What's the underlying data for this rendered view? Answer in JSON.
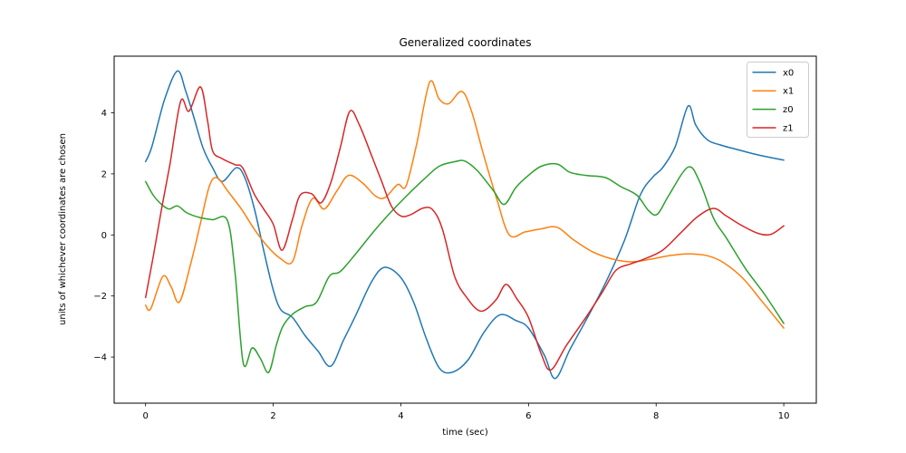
{
  "figure": {
    "title": "Generalized coordinates",
    "xlabel": "time (sec)",
    "ylabel": "units of whichever coordinates are chosen"
  },
  "chart_data": {
    "type": "line",
    "title": "Generalized coordinates",
    "xlabel": "time (sec)",
    "ylabel": "units of whichever coordinates are chosen",
    "xlim": [
      -0.5,
      10.5
    ],
    "ylim": [
      -5.5,
      5.9
    ],
    "x_ticks": [
      0,
      2,
      4,
      6,
      8,
      10
    ],
    "y_ticks": [
      4,
      2,
      0,
      -2,
      -4
    ],
    "grid": false,
    "legend_position": "upper right",
    "legend_entries": [
      "x0",
      "x1",
      "z0",
      "z1"
    ],
    "series": [
      {
        "name": "x0",
        "color": "#1f77b4",
        "points": [
          [
            0,
            2.4
          ],
          [
            0.1,
            2.9
          ],
          [
            0.3,
            4.45
          ],
          [
            0.5,
            5.37
          ],
          [
            0.63,
            4.7
          ],
          [
            0.75,
            3.9
          ],
          [
            0.9,
            2.85
          ],
          [
            1.05,
            2.2
          ],
          [
            1.2,
            1.75
          ],
          [
            1.42,
            2.2
          ],
          [
            1.55,
            1.9
          ],
          [
            1.7,
            0.9
          ],
          [
            1.85,
            -0.5
          ],
          [
            2.0,
            -1.8
          ],
          [
            2.12,
            -2.45
          ],
          [
            2.3,
            -2.7
          ],
          [
            2.5,
            -3.3
          ],
          [
            2.7,
            -3.8
          ],
          [
            2.9,
            -4.3
          ],
          [
            3.1,
            -3.45
          ],
          [
            3.3,
            -2.6
          ],
          [
            3.55,
            -1.5
          ],
          [
            3.75,
            -1.06
          ],
          [
            4.0,
            -1.4
          ],
          [
            4.2,
            -2.2
          ],
          [
            4.4,
            -3.4
          ],
          [
            4.6,
            -4.35
          ],
          [
            4.8,
            -4.5
          ],
          [
            5.05,
            -4.1
          ],
          [
            5.3,
            -3.2
          ],
          [
            5.55,
            -2.62
          ],
          [
            5.8,
            -2.8
          ],
          [
            6.0,
            -3.05
          ],
          [
            6.25,
            -3.95
          ],
          [
            6.42,
            -4.7
          ],
          [
            6.65,
            -3.75
          ],
          [
            6.9,
            -2.8
          ],
          [
            7.2,
            -1.6
          ],
          [
            7.5,
            -0.2
          ],
          [
            7.75,
            1.3
          ],
          [
            7.95,
            1.9
          ],
          [
            8.1,
            2.2
          ],
          [
            8.3,
            2.9
          ],
          [
            8.5,
            4.22
          ],
          [
            8.62,
            3.6
          ],
          [
            8.8,
            3.12
          ],
          [
            9.0,
            2.95
          ],
          [
            9.3,
            2.78
          ],
          [
            9.6,
            2.62
          ],
          [
            10,
            2.45
          ]
        ]
      },
      {
        "name": "x1",
        "color": "#ff7f0e",
        "points": [
          [
            0,
            -2.3
          ],
          [
            0.08,
            -2.42
          ],
          [
            0.27,
            -1.36
          ],
          [
            0.4,
            -1.7
          ],
          [
            0.53,
            -2.2
          ],
          [
            0.7,
            -1.0
          ],
          [
            0.85,
            0.3
          ],
          [
            1.0,
            1.6
          ],
          [
            1.12,
            1.87
          ],
          [
            1.3,
            1.4
          ],
          [
            1.5,
            0.85
          ],
          [
            1.7,
            0.2
          ],
          [
            1.9,
            -0.35
          ],
          [
            2.1,
            -0.75
          ],
          [
            2.3,
            -0.88
          ],
          [
            2.45,
            0.3
          ],
          [
            2.62,
            1.2
          ],
          [
            2.8,
            0.85
          ],
          [
            3.0,
            1.45
          ],
          [
            3.18,
            1.95
          ],
          [
            3.4,
            1.7
          ],
          [
            3.6,
            1.28
          ],
          [
            3.75,
            1.22
          ],
          [
            3.95,
            1.65
          ],
          [
            4.08,
            1.6
          ],
          [
            4.25,
            3.0
          ],
          [
            4.45,
            5.0
          ],
          [
            4.6,
            4.45
          ],
          [
            4.75,
            4.3
          ],
          [
            4.95,
            4.7
          ],
          [
            5.1,
            4.1
          ],
          [
            5.3,
            2.6
          ],
          [
            5.5,
            1.2
          ],
          [
            5.7,
            0.0
          ],
          [
            5.95,
            0.1
          ],
          [
            6.2,
            0.2
          ],
          [
            6.45,
            0.25
          ],
          [
            6.7,
            -0.15
          ],
          [
            7.0,
            -0.55
          ],
          [
            7.3,
            -0.78
          ],
          [
            7.6,
            -0.88
          ],
          [
            7.9,
            -0.8
          ],
          [
            8.2,
            -0.68
          ],
          [
            8.5,
            -0.62
          ],
          [
            8.8,
            -0.68
          ],
          [
            9.05,
            -0.9
          ],
          [
            9.35,
            -1.4
          ],
          [
            9.65,
            -2.15
          ],
          [
            10,
            -3.05
          ]
        ]
      },
      {
        "name": "z0",
        "color": "#2ca02c",
        "points": [
          [
            0,
            1.75
          ],
          [
            0.12,
            1.3
          ],
          [
            0.25,
            1.0
          ],
          [
            0.37,
            0.85
          ],
          [
            0.5,
            0.95
          ],
          [
            0.65,
            0.72
          ],
          [
            0.85,
            0.57
          ],
          [
            1.05,
            0.5
          ],
          [
            1.28,
            0.48
          ],
          [
            1.4,
            -1.2
          ],
          [
            1.53,
            -4.2
          ],
          [
            1.67,
            -3.7
          ],
          [
            1.8,
            -4.05
          ],
          [
            1.93,
            -4.5
          ],
          [
            2.05,
            -3.6
          ],
          [
            2.15,
            -3.0
          ],
          [
            2.3,
            -2.6
          ],
          [
            2.5,
            -2.35
          ],
          [
            2.68,
            -2.2
          ],
          [
            2.88,
            -1.35
          ],
          [
            3.05,
            -1.2
          ],
          [
            3.3,
            -0.6
          ],
          [
            3.55,
            0.05
          ],
          [
            3.8,
            0.65
          ],
          [
            4.1,
            1.3
          ],
          [
            4.35,
            1.8
          ],
          [
            4.6,
            2.25
          ],
          [
            4.85,
            2.4
          ],
          [
            5.0,
            2.42
          ],
          [
            5.2,
            2.1
          ],
          [
            5.45,
            1.45
          ],
          [
            5.62,
            1.0
          ],
          [
            5.8,
            1.55
          ],
          [
            6.0,
            1.95
          ],
          [
            6.2,
            2.25
          ],
          [
            6.45,
            2.32
          ],
          [
            6.65,
            2.05
          ],
          [
            6.9,
            1.95
          ],
          [
            7.2,
            1.88
          ],
          [
            7.45,
            1.58
          ],
          [
            7.7,
            1.3
          ],
          [
            7.88,
            0.8
          ],
          [
            8.02,
            0.68
          ],
          [
            8.2,
            1.3
          ],
          [
            8.5,
            2.22
          ],
          [
            8.68,
            1.75
          ],
          [
            8.9,
            0.55
          ],
          [
            9.1,
            -0.1
          ],
          [
            9.4,
            -1.1
          ],
          [
            9.7,
            -1.95
          ],
          [
            10,
            -2.9
          ]
        ]
      },
      {
        "name": "z1",
        "color": "#d62728",
        "points": [
          [
            0,
            -2.05
          ],
          [
            0.12,
            -0.7
          ],
          [
            0.25,
            0.85
          ],
          [
            0.38,
            2.3
          ],
          [
            0.55,
            4.38
          ],
          [
            0.68,
            4.05
          ],
          [
            0.86,
            4.85
          ],
          [
            0.97,
            3.75
          ],
          [
            1.05,
            2.75
          ],
          [
            1.2,
            2.5
          ],
          [
            1.4,
            2.3
          ],
          [
            1.52,
            2.2
          ],
          [
            1.7,
            1.35
          ],
          [
            1.85,
            0.85
          ],
          [
            2.0,
            0.35
          ],
          [
            2.14,
            -0.5
          ],
          [
            2.3,
            0.5
          ],
          [
            2.42,
            1.3
          ],
          [
            2.6,
            1.35
          ],
          [
            2.75,
            1.05
          ],
          [
            2.9,
            1.7
          ],
          [
            3.05,
            2.85
          ],
          [
            3.2,
            4.05
          ],
          [
            3.35,
            3.6
          ],
          [
            3.55,
            2.55
          ],
          [
            3.7,
            1.75
          ],
          [
            3.85,
            0.95
          ],
          [
            4.0,
            0.62
          ],
          [
            4.15,
            0.66
          ],
          [
            4.35,
            0.88
          ],
          [
            4.5,
            0.82
          ],
          [
            4.65,
            0.2
          ],
          [
            4.85,
            -1.4
          ],
          [
            5.05,
            -2.1
          ],
          [
            5.2,
            -2.45
          ],
          [
            5.32,
            -2.46
          ],
          [
            5.5,
            -2.1
          ],
          [
            5.65,
            -1.62
          ],
          [
            5.82,
            -2.1
          ],
          [
            6.0,
            -2.7
          ],
          [
            6.2,
            -3.9
          ],
          [
            6.35,
            -4.42
          ],
          [
            6.6,
            -3.6
          ],
          [
            6.9,
            -2.7
          ],
          [
            7.15,
            -1.9
          ],
          [
            7.37,
            -1.16
          ],
          [
            7.6,
            -0.95
          ],
          [
            7.8,
            -0.8
          ],
          [
            8.1,
            -0.5
          ],
          [
            8.4,
            0.1
          ],
          [
            8.65,
            0.6
          ],
          [
            8.9,
            0.87
          ],
          [
            9.1,
            0.62
          ],
          [
            9.35,
            0.3
          ],
          [
            9.6,
            0.05
          ],
          [
            9.8,
            0.02
          ],
          [
            10,
            0.3
          ]
        ]
      }
    ]
  }
}
